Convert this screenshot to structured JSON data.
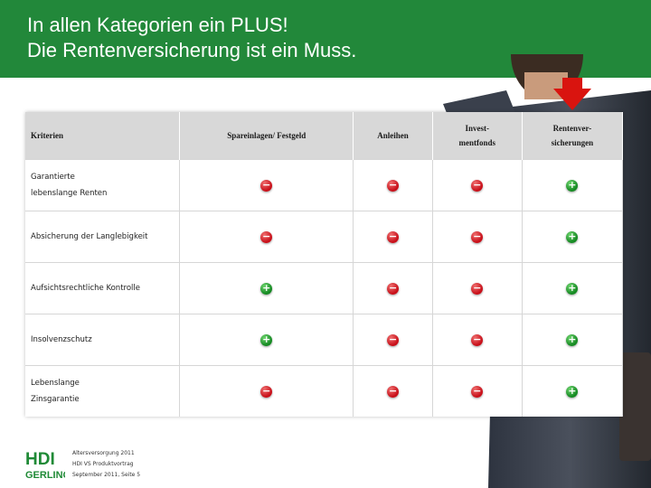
{
  "title": {
    "line1": "In allen Kategorien ein PLUS!",
    "line2": "Die Rentenversicherung ist ein Muss."
  },
  "table": {
    "headers": [
      {
        "line1": "Kriterien",
        "line2": ""
      },
      {
        "line1": "Spareinlagen/ Festgeld",
        "line2": ""
      },
      {
        "line1": "Anleihen",
        "line2": ""
      },
      {
        "line1": "Invest-",
        "line2": "mentfonds"
      },
      {
        "line1": "Rentenver-",
        "line2": "sicherungen"
      }
    ],
    "rows": [
      {
        "label1": "Garantierte",
        "label2": "lebenslange Renten",
        "values": [
          "minus",
          "minus",
          "minus",
          "plus"
        ]
      },
      {
        "label1": "Absicherung der Langlebigkeit",
        "label2": "",
        "values": [
          "minus",
          "minus",
          "minus",
          "plus"
        ]
      },
      {
        "label1": "Aufsichtsrechtliche Kontrolle",
        "label2": "",
        "values": [
          "plus",
          "minus",
          "minus",
          "plus"
        ]
      },
      {
        "label1": "Insolvenzschutz",
        "label2": "",
        "values": [
          "plus",
          "minus",
          "minus",
          "plus"
        ]
      },
      {
        "label1": "Lebenslange",
        "label2": "Zinsgarantie",
        "values": [
          "minus",
          "minus",
          "minus",
          "plus"
        ]
      }
    ]
  },
  "symbols": {
    "plus": "+",
    "minus": "−"
  },
  "footer": {
    "logo_top": "HDI",
    "logo_bottom": "GERLING",
    "line1": "Altersversorgung 2011",
    "line2": "HDI VS Produktvortrag",
    "line3": "September 2011, Seite 5"
  },
  "colors": {
    "brand_green": "#22883a",
    "plus": "#168a23",
    "minus": "#c8101a",
    "arrow": "#d9140f"
  }
}
